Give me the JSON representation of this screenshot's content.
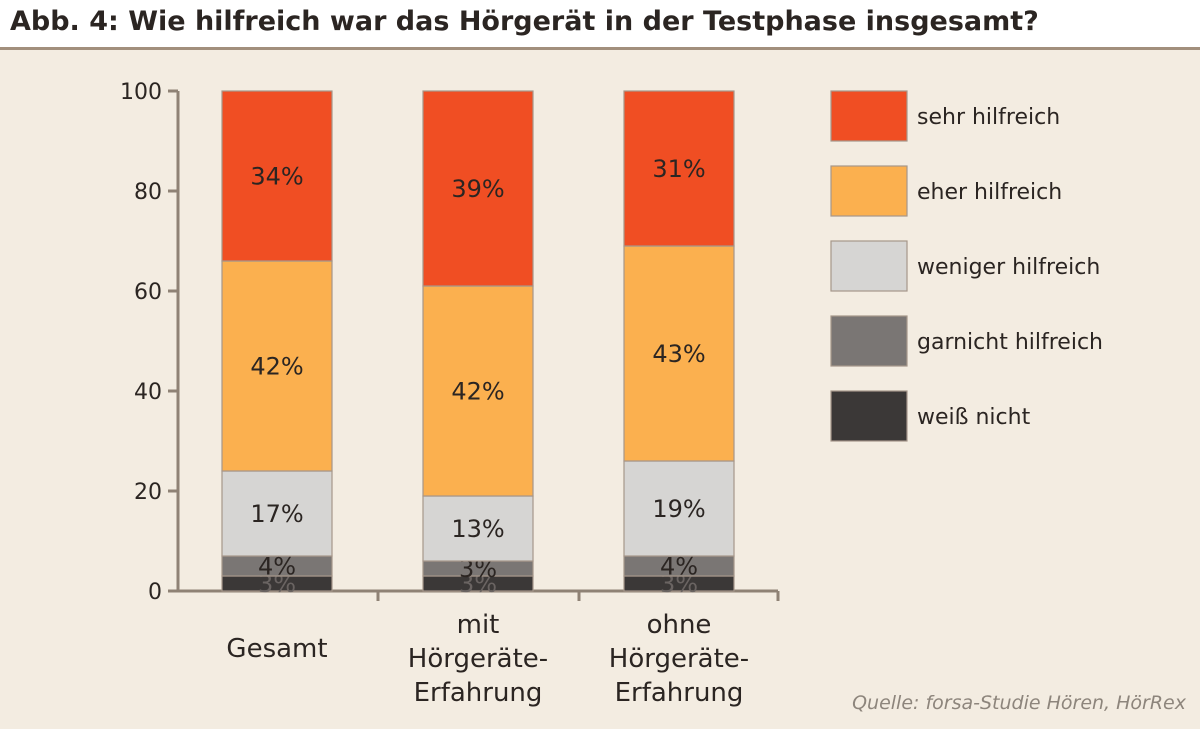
{
  "title": "Abb. 4: Wie hilfreich war das Hörgerät in der Testphase insgesamt?",
  "source": "Quelle: forsa-Studie Hören, HörRex",
  "colors": {
    "sehr_hilfreich": "#f04e23",
    "eher_hilfreich": "#fbb04f",
    "weniger_hilfreich": "#d6d5d3",
    "garnicht_hilfreich": "#7a7674",
    "weiss_nicht": "#3b3837"
  },
  "chart_data": {
    "type": "bar",
    "stacked": true,
    "categories": [
      [
        "Gesamt"
      ],
      [
        "mit",
        "Hörgeräte-",
        "Erfahrung"
      ],
      [
        "ohne",
        "Hörgeräte-",
        "Erfahrung"
      ]
    ],
    "series": [
      {
        "name": "weiß nicht",
        "color": "#3b3837",
        "values": [
          3,
          3,
          3
        ],
        "labels": [
          "3%",
          "3%",
          "3%"
        ]
      },
      {
        "name": "garnicht hilfreich",
        "color": "#7a7674",
        "values": [
          4,
          3,
          4
        ],
        "labels": [
          "4%",
          "3%",
          "4%"
        ]
      },
      {
        "name": "weniger hilfreich",
        "color": "#d6d5d3",
        "values": [
          17,
          13,
          19
        ],
        "labels": [
          "17%",
          "13%",
          "19%"
        ]
      },
      {
        "name": "eher hilfreich",
        "color": "#fbb04f",
        "values": [
          42,
          42,
          43
        ],
        "labels": [
          "42%",
          "42%",
          "43%"
        ]
      },
      {
        "name": "sehr hilfreich",
        "color": "#f04e23",
        "values": [
          34,
          39,
          31
        ],
        "labels": [
          "34%",
          "39%",
          "31%"
        ]
      }
    ],
    "legend_order": [
      "sehr hilfreich",
      "eher hilfreich",
      "weniger hilfreich",
      "garnicht hilfreich",
      "weiß nicht"
    ],
    "legend_position": "right",
    "ylim": [
      0,
      100
    ],
    "yticks": [
      0,
      20,
      40,
      60,
      80,
      100
    ],
    "grid": false,
    "xlabel": "",
    "ylabel": ""
  }
}
